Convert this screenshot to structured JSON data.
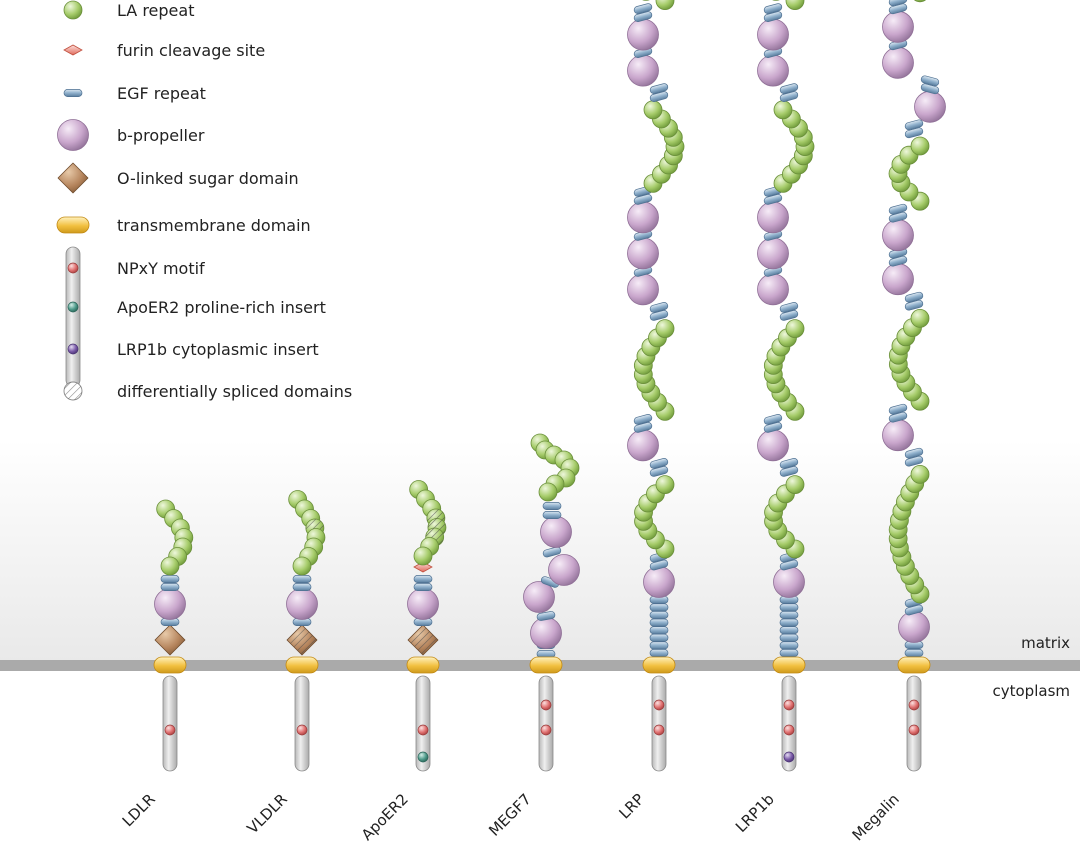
{
  "legend": [
    {
      "key": "la",
      "label": "LA repeat",
      "icon": "la-repeat-icon"
    },
    {
      "key": "furin",
      "label": "furin cleavage site",
      "icon": "furin-cleavage-icon"
    },
    {
      "key": "egf",
      "label": "EGF repeat",
      "icon": "egf-repeat-icon"
    },
    {
      "key": "prop",
      "label": "b-propeller",
      "icon": "b-propeller-icon"
    },
    {
      "key": "sugar",
      "label": "O-linked sugar domain",
      "icon": "o-linked-sugar-icon"
    },
    {
      "key": "tm",
      "label": "transmembrane domain",
      "icon": "transmembrane-icon"
    },
    {
      "key": "npxy",
      "label": "NPxY motif",
      "icon": "npxy-motif-icon"
    },
    {
      "key": "apo",
      "label": "ApoER2 proline-rich insert",
      "icon": "proline-insert-icon"
    },
    {
      "key": "lrp1b",
      "label": "LRP1b cytoplasmic insert",
      "icon": "lrp1b-insert-icon"
    },
    {
      "key": "spliced",
      "label": "differentially spliced domains",
      "icon": "spliced-domain-icon"
    }
  ],
  "regions": {
    "matrix": "matrix",
    "cytoplasm": "cytoplasm"
  },
  "colors": {
    "la": "#a6cc6a",
    "egf": "#8fb0cc",
    "prop": "#c9a6cc",
    "sugar": "#b5845c",
    "tm": "#f2c040",
    "furin": "#f08a80",
    "npxy": "#e07070",
    "apo": "#4e9a8a",
    "lrp1b": "#7a5aa8",
    "membrane": "#aaaaaa",
    "tail": "#d2d2d2"
  },
  "receptors": [
    {
      "name": "LDLR",
      "la_count": 7,
      "egf_count": 2,
      "propellers": 1,
      "sugar": "solid",
      "spliced_la": 0,
      "motifs": [
        "npxy"
      ]
    },
    {
      "name": "VLDLR",
      "la_count": 8,
      "egf_count": 2,
      "propellers": 1,
      "sugar": "spliced",
      "spliced_la": 1,
      "motifs": [
        "npxy"
      ]
    },
    {
      "name": "ApoER2",
      "la_count": 8,
      "egf_count": 2,
      "propellers": 1,
      "sugar": "spliced",
      "spliced_la": 3,
      "furin": true,
      "motifs": [
        "npxy",
        "apo"
      ]
    },
    {
      "name": "MEGF7",
      "la_count": 8,
      "egf_count": 6,
      "propellers": 4,
      "sugar": "none",
      "spliced_la": 0,
      "motifs": [
        "npxy",
        "npxy"
      ]
    },
    {
      "name": "LRP",
      "la_count": 31,
      "egf_count": 22,
      "propellers": 8,
      "sugar": "none",
      "spliced_la": 0,
      "motifs": [
        "npxy",
        "npxy"
      ]
    },
    {
      "name": "LRP1b",
      "la_count": 32,
      "egf_count": 22,
      "propellers": 8,
      "sugar": "none",
      "spliced_la": 0,
      "motifs": [
        "npxy",
        "npxy",
        "lrp1b"
      ]
    },
    {
      "name": "Megalin",
      "la_count": 36,
      "egf_count": 17,
      "propellers": 8,
      "sugar": "none",
      "spliced_la": 0,
      "motifs": [
        "npxy",
        "npxy"
      ]
    }
  ]
}
